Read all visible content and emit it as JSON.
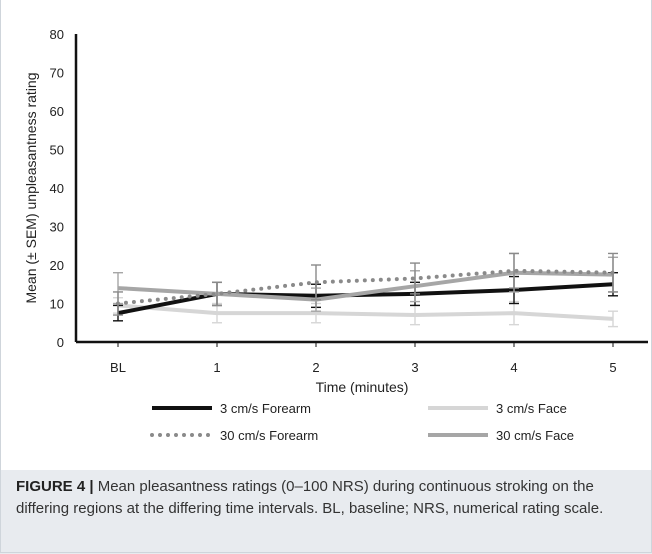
{
  "chart_data": {
    "type": "line",
    "categories": [
      "BL",
      "1",
      "2",
      "3",
      "4",
      "5"
    ],
    "xlabel": "Time (minutes)",
    "ylabel": "Mean (± SEM)  unpleasantness rating",
    "ylim": [
      0,
      80
    ],
    "yticks": [
      0,
      10,
      20,
      30,
      40,
      50,
      60,
      70,
      80
    ],
    "grid": false,
    "legend_position": "bottom",
    "series": [
      {
        "name": "3 cm/s Forearm",
        "color": "#111111",
        "style": "solid",
        "values": [
          7.5,
          12.5,
          12,
          12.5,
          13.5,
          15
        ],
        "sem": [
          2,
          3,
          3,
          3,
          3.5,
          3
        ]
      },
      {
        "name": "3 cm/s Face",
        "color": "#d6d6d6",
        "style": "solid",
        "values": [
          9.5,
          7.5,
          7.5,
          7,
          7.5,
          6
        ],
        "sem": [
          2,
          2.5,
          2.5,
          2.5,
          3,
          2
        ]
      },
      {
        "name": "30 cm/s Forearm",
        "color": "#8a8a8a",
        "style": "dotted",
        "values": [
          10,
          12.5,
          15.5,
          16.5,
          18.5,
          18
        ],
        "sem": [
          3,
          3,
          4.5,
          4,
          4.5,
          5
        ]
      },
      {
        "name": "30 cm/s Face",
        "color": "#a6a6a6",
        "style": "solid",
        "values": [
          14,
          12.5,
          11,
          14.5,
          18,
          17.5
        ],
        "sem": [
          4,
          3,
          3,
          4,
          5,
          4.5
        ]
      }
    ]
  },
  "caption": {
    "label": "FIGURE 4 |",
    "text": " Mean pleasantness ratings (0–100 NRS) during continuous stroking on the differing regions at the differing time intervals. BL, baseline; NRS, numerical rating scale."
  }
}
